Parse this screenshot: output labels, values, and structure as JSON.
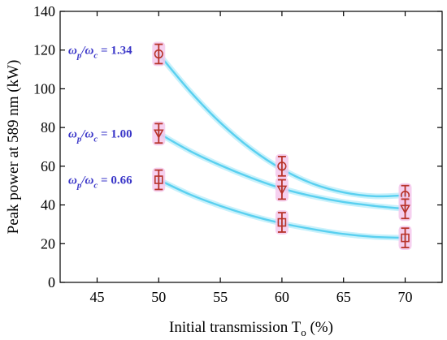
{
  "chart_data": {
    "type": "scatter",
    "xlabel": {
      "main": "Initial transmission T",
      "sub": "o",
      "unit": " (%)"
    },
    "ylabel": "Peak power at 589 nm (kW)",
    "xlim": [
      42,
      73
    ],
    "ylim": [
      0,
      140
    ],
    "x_ticks": [
      45,
      50,
      55,
      60,
      65,
      70
    ],
    "y_ticks": [
      0,
      20,
      40,
      60,
      80,
      100,
      120,
      140
    ],
    "grid": false,
    "legend": "none",
    "x": [
      50,
      60,
      70
    ],
    "series": [
      {
        "marker": "circle",
        "values": [
          118,
          60,
          45
        ],
        "errors": [
          5,
          5,
          5
        ],
        "fit": [
          [
            50,
            118
          ],
          [
            52.5,
            99
          ],
          [
            55,
            82.5
          ],
          [
            57.5,
            69
          ],
          [
            60,
            58.5
          ],
          [
            62.5,
            51
          ],
          [
            65,
            46.5
          ],
          [
            67.5,
            44.5
          ],
          [
            70,
            45
          ]
        ],
        "annotation": {
          "ratio_a": "ω",
          "sub_a": "p",
          "ratio_b": "ω",
          "sub_b": "c",
          "value": " = 1.34",
          "y": 120
        }
      },
      {
        "marker": "triangle-down",
        "values": [
          77,
          48,
          38
        ],
        "errors": [
          5,
          5,
          5
        ],
        "fit": [
          [
            50,
            77
          ],
          [
            52.5,
            68
          ],
          [
            55,
            60.5
          ],
          [
            57.5,
            54
          ],
          [
            60,
            48.5
          ],
          [
            62.5,
            44.5
          ],
          [
            65,
            41.5
          ],
          [
            67.5,
            39.5
          ],
          [
            70,
            38
          ]
        ],
        "annotation": {
          "ratio_a": "ω",
          "sub_a": "p",
          "ratio_b": "ω",
          "sub_b": "c",
          "value": " = 1.00",
          "y": 77
        }
      },
      {
        "marker": "square",
        "values": [
          53,
          31,
          23
        ],
        "errors": [
          5,
          5,
          5
        ],
        "fit": [
          [
            50,
            53
          ],
          [
            52.5,
            45.5
          ],
          [
            55,
            39.5
          ],
          [
            57.5,
            34.5
          ],
          [
            60,
            30.5
          ],
          [
            62.5,
            27.5
          ],
          [
            65,
            25
          ],
          [
            67.5,
            23.5
          ],
          [
            70,
            23
          ]
        ],
        "annotation": {
          "ratio_a": "ω",
          "sub_a": "p",
          "ratio_b": "ω",
          "sub_b": "c",
          "value": " = 0.66",
          "y": 53
        }
      }
    ],
    "colors": {
      "fit_line": "#5ad0f0",
      "fit_glow": "#c8f1fb",
      "marker": "#b8332a",
      "error_bar": "#b8332a",
      "marker_halo": "#f4c8ec",
      "annotation": "#3a36c8",
      "axis": "#000000"
    }
  }
}
